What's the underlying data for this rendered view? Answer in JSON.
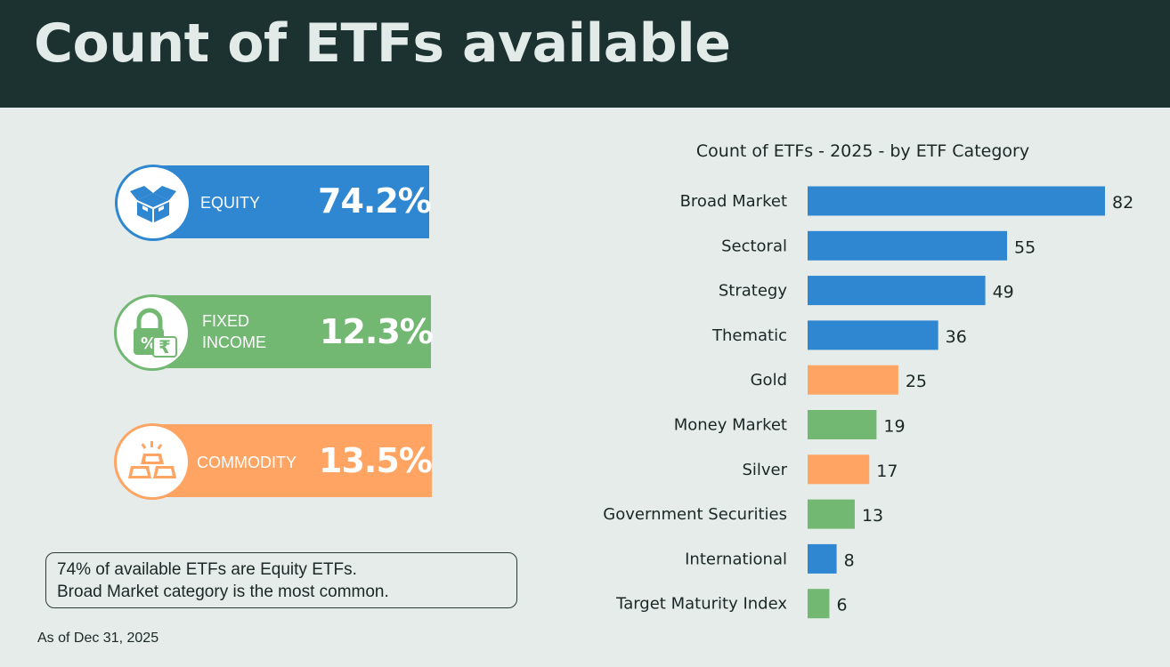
{
  "header": {
    "title": "Count of ETFs available"
  },
  "cards": [
    {
      "label_line1": "EQUITY",
      "label_line2": "",
      "value": "74.2%",
      "icon": "box-icon",
      "color": "#2f86d1"
    },
    {
      "label_line1": "FIXED",
      "label_line2": "INCOME",
      "value": "12.3%",
      "icon": "lock-rupee-icon",
      "color": "#72b873"
    },
    {
      "label_line1": "COMMODITY",
      "label_line2": "",
      "value": "13.5%",
      "icon": "gold-bars-icon",
      "color": "#ffa463"
    }
  ],
  "note": {
    "line1": "74% of available ETFs are Equity ETFs.",
    "line2": "Broad Market category is the most common."
  },
  "as_of": "As of Dec 31, 2025",
  "colors": {
    "equity": "#2f86d1",
    "fixed_income": "#72b873",
    "commodity": "#ffa463"
  },
  "chart_data": {
    "type": "bar",
    "orientation": "horizontal",
    "title": "Count of ETFs - 2025 - by ETF Category",
    "xlabel": "",
    "ylabel": "",
    "xlim": [
      0,
      82
    ],
    "categories": [
      "Broad Market",
      "Sectoral",
      "Strategy",
      "Thematic",
      "Gold",
      "Money Market",
      "Silver",
      "Government Securities",
      "International",
      "Target Maturity Index"
    ],
    "values": [
      82,
      55,
      49,
      36,
      25,
      19,
      17,
      13,
      8,
      6
    ],
    "groups": [
      "equity",
      "equity",
      "equity",
      "equity",
      "commodity",
      "fixed_income",
      "commodity",
      "fixed_income",
      "equity",
      "fixed_income"
    ],
    "data_labels": true,
    "grid": false
  }
}
